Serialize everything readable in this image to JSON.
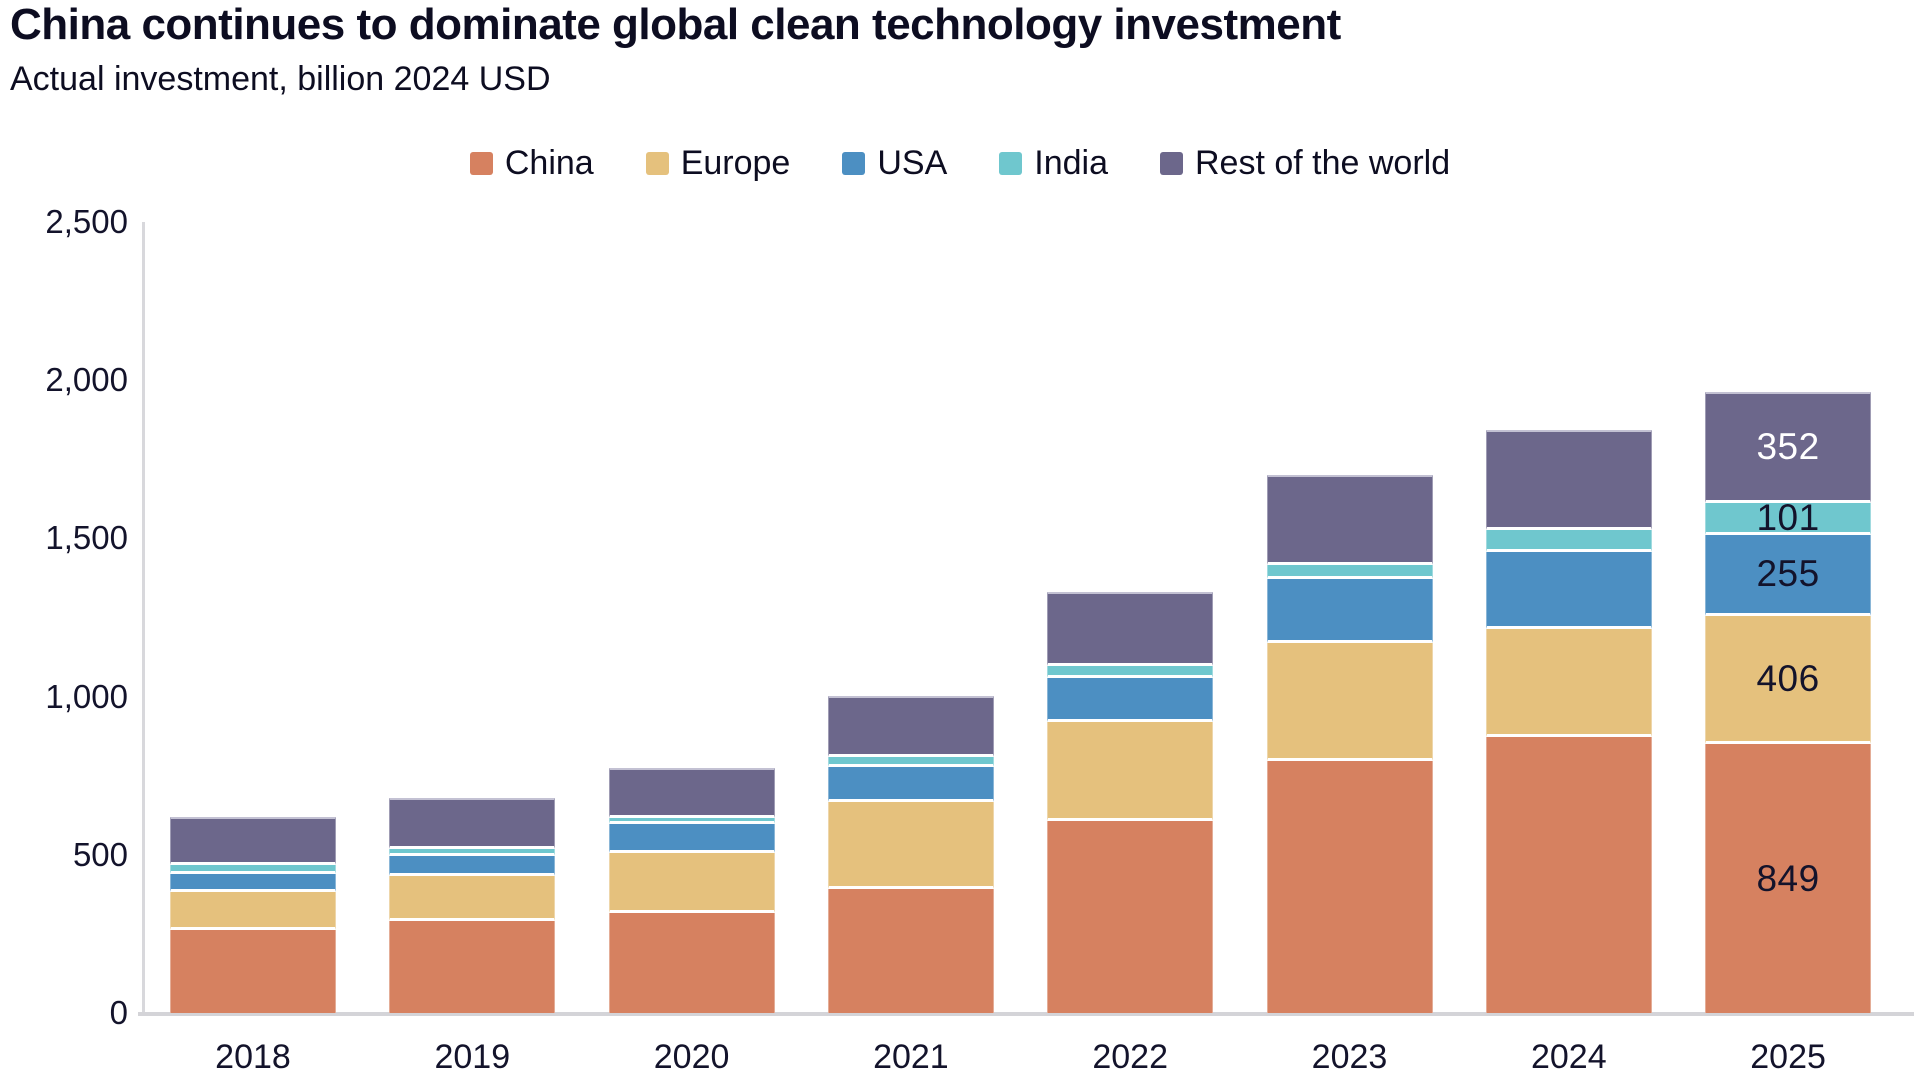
{
  "header": {
    "title": "China continues to dominate global clean technology investment",
    "subtitle": "Actual investment, billion 2024 USD"
  },
  "colors": {
    "china": "#D68160",
    "europe": "#E5C17D",
    "usa": "#4C8FC2",
    "india": "#6FC7CE",
    "rest_of_world": "#6C678B",
    "axis": "#D8D8DC",
    "text": "#0D0D21"
  },
  "chart_data": {
    "type": "bar",
    "stacked": true,
    "title": "China continues to dominate global clean technology investment",
    "subtitle": "Actual investment, billion 2024 USD",
    "xlabel": "",
    "ylabel": "",
    "ylim": [
      0,
      2500
    ],
    "ytick_values": [
      0,
      500,
      1000,
      1500,
      2000,
      2500
    ],
    "ytick_labels": [
      "0",
      "500",
      "1,000",
      "1,500",
      "2,000",
      "2,500"
    ],
    "grid": false,
    "legend_position": "top",
    "categories": [
      "2018",
      "2019",
      "2020",
      "2021",
      "2022",
      "2023",
      "2024",
      "2025"
    ],
    "series": [
      {
        "name": "China",
        "color": "#D68160",
        "label_color": "#13132B",
        "values": [
          262,
          291,
          316,
          392,
          607,
          797,
          872,
          849
        ]
      },
      {
        "name": "Europe",
        "color": "#E5C17D",
        "label_color": "#13132B",
        "values": [
          120,
          142,
          190,
          275,
          313,
          373,
          341,
          406
        ]
      },
      {
        "name": "USA",
        "color": "#4C8FC2",
        "label_color": "#13132B",
        "values": [
          57,
          63,
          92,
          111,
          139,
          202,
          243,
          255
        ]
      },
      {
        "name": "India",
        "color": "#6FC7CE",
        "label_color": "#13132B",
        "values": [
          28,
          22,
          19,
          30,
          38,
          44,
          70,
          101
        ]
      },
      {
        "name": "Rest of the world",
        "color": "#6C678B",
        "label_color": "#FFFFFF",
        "values": [
          152,
          161,
          158,
          193,
          234,
          284,
          316,
          352
        ]
      }
    ],
    "data_labels": {
      "category": "2025",
      "values": {
        "China": "849",
        "Europe": "406",
        "USA": "255",
        "India": "101",
        "Rest of the world": "352"
      }
    }
  }
}
